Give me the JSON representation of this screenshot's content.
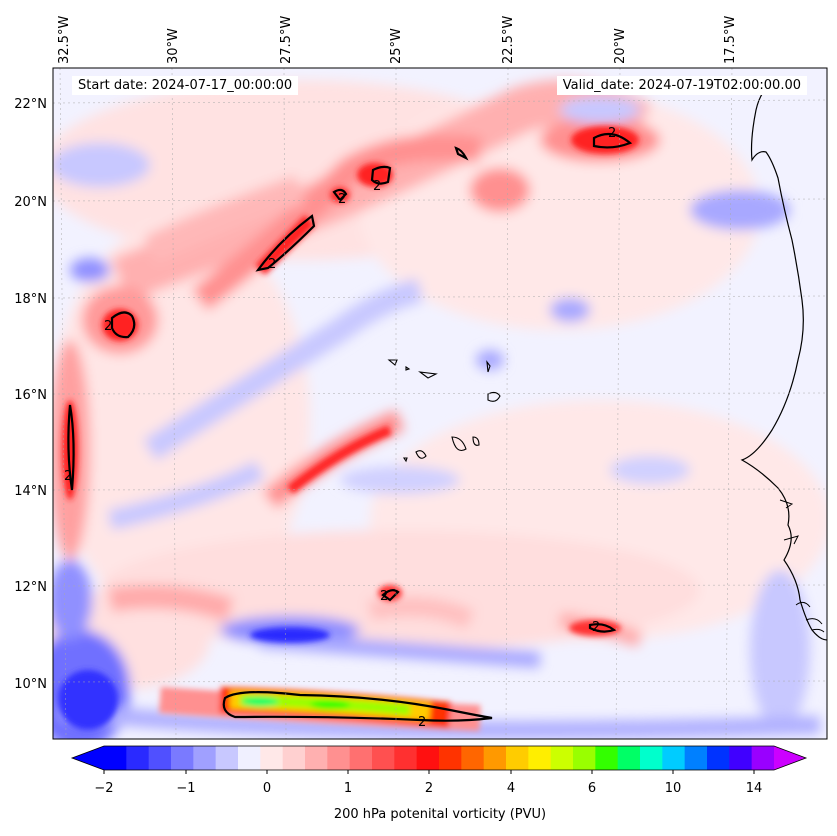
{
  "header": {
    "start_label": "Start date: 2024-07-17_00:00:00",
    "valid_label": "Valid_date: 2024-07-19T02:00:00.00"
  },
  "longitude_labels": [
    "32.5°W",
    "30°W",
    "27.5°W",
    "25°W",
    "22.5°W",
    "20°W",
    "17.5°W"
  ],
  "latitude_labels": [
    "22°N",
    "20°N",
    "18°N",
    "16°N",
    "14°N",
    "12°N",
    "10°N"
  ],
  "colorbar": {
    "label": "200 hPa potenital vorticity (PVU)",
    "tick_labels": [
      "−2",
      "−1",
      "0",
      "1",
      "2",
      "4",
      "6",
      "10",
      "14"
    ],
    "colors": [
      "#0000ff",
      "#2a2aff",
      "#5050ff",
      "#7a7aff",
      "#a0a0ff",
      "#c8c8ff",
      "#f0f0ff",
      "#ffe8e8",
      "#ffd0d0",
      "#ffb0b0",
      "#ff9090",
      "#ff7070",
      "#ff5050",
      "#ff3030",
      "#ff1010",
      "#ff3300",
      "#ff6600",
      "#ff9900",
      "#ffcc00",
      "#ffee00",
      "#ccff00",
      "#99ff00",
      "#33ff00",
      "#00ff66",
      "#00ffcc",
      "#00ccff",
      "#0080ff",
      "#0033ff",
      "#4000ff",
      "#9900ff"
    ],
    "under_color": "#0000ff",
    "over_color": "#cc00ff"
  },
  "contour_label": "2",
  "map_data": {
    "lon_range": [
      -33,
      -15.5
    ],
    "lat_range": [
      9,
      22.8
    ],
    "lon_ticks": [
      -32.5,
      -30,
      -27.5,
      -25,
      -22.5,
      -20,
      -17.5
    ],
    "lat_ticks": [
      22,
      20,
      18,
      16,
      14,
      12,
      10
    ]
  }
}
